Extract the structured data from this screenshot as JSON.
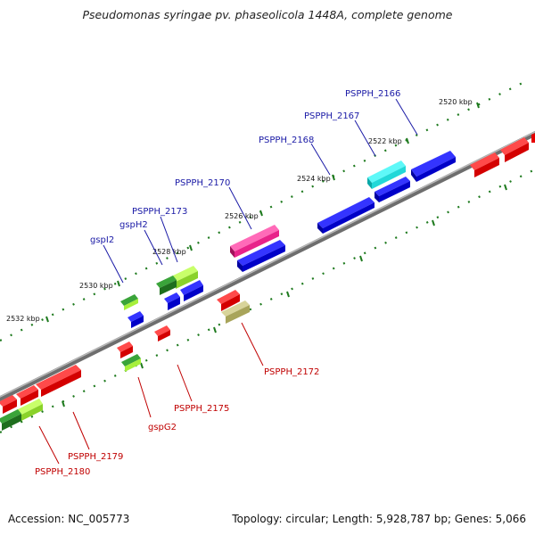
{
  "title": "Pseudomonas syringae pv. phaseolicola 1448A, complete genome",
  "footer": {
    "accession": "Accession: NC_005773",
    "topology": "Topology: circular; Length: 5,928,787 bp; Genes: 5,066"
  },
  "scale_labels": [
    "2520 kbp",
    "2522 kbp",
    "2524 kbp",
    "2526 kbp",
    "2528 kbp",
    "2530 kbp",
    "2532 kbp"
  ],
  "gene_labels": {
    "top": [
      "PSPPH_2166",
      "PSPPH_2167",
      "PSPPH_2168",
      "PSPPH_2170",
      "PSPPH_2173",
      "gspH2",
      "gspI2"
    ],
    "bottom": [
      "PSPPH_2172",
      "PSPPH_2175",
      "gspG2",
      "PSPPH_2179",
      "PSPPH_2180"
    ]
  },
  "colors": {
    "backbone": "#8a8a8a",
    "tick": "#1e7a1e",
    "forward_gene": "#0000e6",
    "reverse_gene": "#e60000",
    "highlight_cyan": "#22e8e8",
    "highlight_magenta": "#e8238a",
    "gsp_light_green": "#a6f03a",
    "gsp_dark_green": "#1e7a1e",
    "olive": "#b7b46a"
  }
}
